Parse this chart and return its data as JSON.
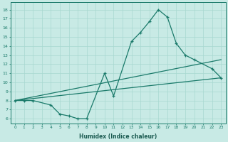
{
  "bg_color": "#c8eae5",
  "line_color": "#1a7a6a",
  "grid_color": "#a8d8d0",
  "ylabel_values": [
    6,
    7,
    8,
    9,
    10,
    11,
    12,
    13,
    14,
    15,
    16,
    17,
    18
  ],
  "xlabel_ticks": [
    0,
    1,
    2,
    3,
    4,
    5,
    6,
    7,
    8,
    9,
    10,
    11,
    12,
    13,
    14,
    15,
    16,
    17,
    18,
    19,
    20,
    21,
    22,
    23
  ],
  "xlabel_label": "Humidex (Indice chaleur)",
  "xlim": [
    -0.5,
    23.5
  ],
  "ylim": [
    5.5,
    18.8
  ],
  "series1_x": [
    0,
    1,
    2,
    4,
    5,
    6,
    7,
    8,
    10,
    11,
    13,
    14,
    15,
    16,
    17,
    18,
    19,
    20,
    22,
    23
  ],
  "series1_y": [
    8.0,
    8.0,
    8.0,
    7.5,
    6.5,
    6.3,
    6.0,
    6.0,
    11.0,
    8.5,
    14.5,
    15.5,
    16.7,
    18.0,
    17.2,
    14.3,
    13.0,
    12.5,
    11.5,
    10.5
  ],
  "series2_x": [
    0,
    23
  ],
  "series2_y": [
    8.0,
    12.5
  ],
  "series3_x": [
    0,
    23
  ],
  "series3_y": [
    8.0,
    10.5
  ]
}
